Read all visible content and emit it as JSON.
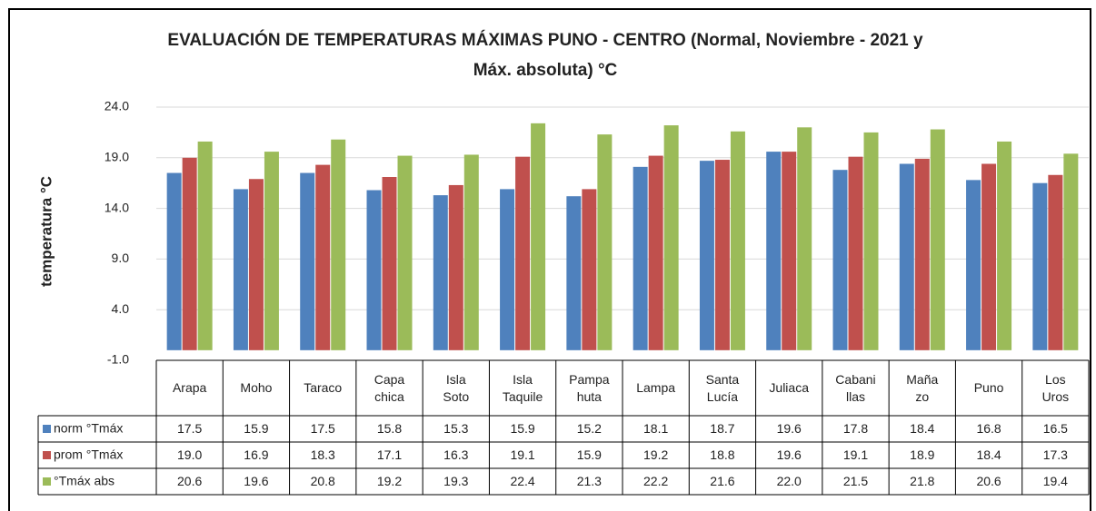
{
  "chart_data": {
    "type": "bar",
    "title": "EVALUACIÓN DE TEMPERATURAS MÁXIMAS PUNO - CENTRO (Normal, Noviembre - 2021 y\nMáx. absoluta) °C",
    "y_label": "temperatura °C",
    "categories": [
      "Arapa",
      "Moho",
      "Taraco",
      "Capa\nchica",
      "Isla\nSoto",
      "Isla\nTaquile",
      "Pampa\nhuta",
      "Lampa",
      "Santa\nLucía",
      "Juliaca",
      "Cabani\nllas",
      "Maña\nzo",
      "Puno",
      "Los\nUros"
    ],
    "series": [
      {
        "name": "norm °Tmáx",
        "color": "#4f81bd",
        "values": [
          17.5,
          15.9,
          17.5,
          15.8,
          15.3,
          15.9,
          15.2,
          18.1,
          18.7,
          19.6,
          17.8,
          18.4,
          16.8,
          16.5
        ],
        "value_labels": [
          "17.5",
          "15.9",
          "17.5",
          "15.8",
          "15.3",
          "15.9",
          "15.2",
          "18.1",
          "18.7",
          "19.6",
          "17.8",
          "18.4",
          "16.8",
          "16.5"
        ]
      },
      {
        "name": "prom °Tmáx",
        "color": "#c0504d",
        "values": [
          19.0,
          16.9,
          18.3,
          17.1,
          16.3,
          19.1,
          15.9,
          19.2,
          18.8,
          19.6,
          19.1,
          18.9,
          18.4,
          17.3
        ],
        "value_labels": [
          "19.0",
          "16.9",
          "18.3",
          "17.1",
          "16.3",
          "19.1",
          "15.9",
          "19.2",
          "18.8",
          "19.6",
          "19.1",
          "18.9",
          "18.4",
          "17.3"
        ]
      },
      {
        "name": "°Tmáx abs",
        "color": "#9bbb59",
        "values": [
          20.6,
          19.6,
          20.8,
          19.2,
          19.3,
          22.4,
          21.3,
          22.2,
          21.6,
          22.0,
          21.5,
          21.8,
          20.6,
          19.4
        ],
        "value_labels": [
          "20.6",
          "19.6",
          "20.8",
          "19.2",
          "19.3",
          "22.4",
          "21.3",
          "22.2",
          "21.6",
          "22.0",
          "21.5",
          "21.8",
          "20.6",
          "19.4"
        ]
      }
    ],
    "ylim": [
      -1,
      24
    ],
    "yticks": [
      {
        "value": -1,
        "label": "-1.0"
      },
      {
        "value": 4,
        "label": "4.0"
      },
      {
        "value": 9,
        "label": "9.0"
      },
      {
        "value": 14,
        "label": "14.0"
      },
      {
        "value": 19,
        "label": "19.0"
      },
      {
        "value": 24,
        "label": "24.0"
      }
    ],
    "grid": true
  }
}
